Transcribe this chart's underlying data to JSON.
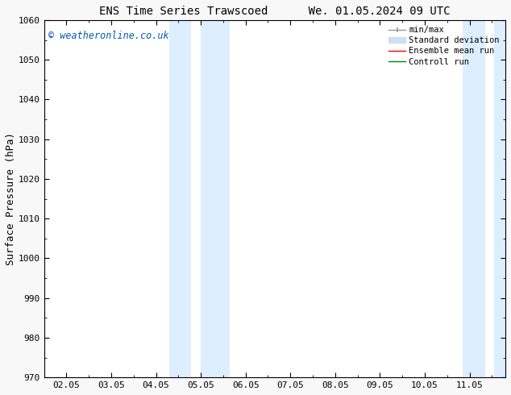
{
  "title_left": "ENS Time Series Trawscoed",
  "title_right": "We. 01.05.2024 09 UTC",
  "ylabel": "Surface Pressure (hPa)",
  "ylim": [
    970,
    1060
  ],
  "yticks": [
    970,
    980,
    990,
    1000,
    1010,
    1020,
    1030,
    1040,
    1050,
    1060
  ],
  "xtick_labels": [
    "02.05",
    "03.05",
    "04.05",
    "05.05",
    "06.05",
    "07.05",
    "08.05",
    "09.05",
    "10.05",
    "11.05"
  ],
  "xtick_positions": [
    0,
    1,
    2,
    3,
    4,
    5,
    6,
    7,
    8,
    9
  ],
  "xlim": [
    -0.5,
    9.8
  ],
  "shaded_bands": [
    {
      "x_start": 2.3,
      "x_end": 2.78,
      "color": "#ddeeff"
    },
    {
      "x_start": 3.0,
      "x_end": 3.65,
      "color": "#ddeeff"
    },
    {
      "x_start": 8.85,
      "x_end": 9.35,
      "color": "#ddeeff"
    },
    {
      "x_start": 9.55,
      "x_end": 9.8,
      "color": "#ddeeff"
    }
  ],
  "copyright_text": "© weatheronline.co.uk",
  "copyright_color": "#0055bb",
  "legend_items": [
    {
      "label": "min/max",
      "color": "#999999",
      "linestyle": "-",
      "linewidth": 1.0,
      "type": "errorbar"
    },
    {
      "label": "Standard deviation",
      "color": "#cce0f0",
      "linestyle": "-",
      "linewidth": 8,
      "type": "patch"
    },
    {
      "label": "Ensemble mean run",
      "color": "#ff0000",
      "linestyle": "-",
      "linewidth": 1.0,
      "type": "line"
    },
    {
      "label": "Controll run",
      "color": "#008800",
      "linestyle": "-",
      "linewidth": 1.0,
      "type": "line"
    }
  ],
  "background_color": "#f8f8f8",
  "plot_bg_color": "#ffffff",
  "spine_color": "#000000",
  "tick_color": "#000000",
  "figsize": [
    6.34,
    4.9
  ],
  "dpi": 100,
  "title_fontsize": 10,
  "tick_fontsize": 8,
  "ylabel_fontsize": 9
}
